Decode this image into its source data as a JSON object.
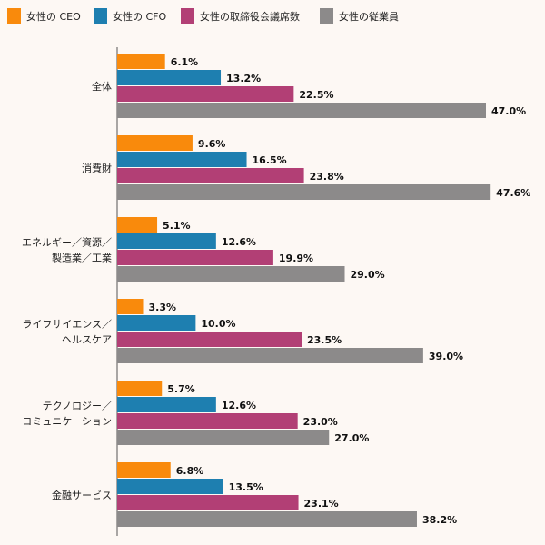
{
  "chart_data": {
    "type": "bar",
    "orientation": "horizontal",
    "xlim": [
      0,
      50
    ],
    "grid": false,
    "legend_position": "top-left",
    "categories": [
      [
        "全体"
      ],
      [
        "消費財"
      ],
      [
        "エネルギー／資源／",
        "製造業／工業"
      ],
      [
        "ライフサイエンス／",
        "ヘルスケア"
      ],
      [
        "テクノロジー／",
        "コミュニケーション"
      ],
      [
        "金融サービス"
      ]
    ],
    "series": [
      {
        "name": "女性の CEO",
        "color": "#f98a0c",
        "values": [
          6.1,
          9.6,
          5.1,
          3.3,
          5.7,
          6.8
        ],
        "labels": [
          "6.1%",
          "9.6%",
          "5.1%",
          "3.3%",
          "5.7%",
          "6.8%"
        ]
      },
      {
        "name": "女性の CFO",
        "color": "#1e7fb0",
        "values": [
          13.2,
          16.5,
          12.6,
          10.0,
          12.6,
          13.5
        ],
        "labels": [
          "13.2%",
          "16.5%",
          "12.6%",
          "10.0%",
          "12.6%",
          "13.5%"
        ]
      },
      {
        "name": "女性の取締役会議席数",
        "color": "#b23f75",
        "values": [
          22.5,
          23.8,
          19.9,
          23.5,
          23.0,
          23.1
        ],
        "labels": [
          "22.5%",
          "23.8%",
          "19.9%",
          "23.5%",
          "23.0%",
          "23.1%"
        ]
      },
      {
        "name": "女性の従業員",
        "color": "#8c8a8a",
        "values": [
          47.0,
          47.6,
          29.0,
          39.0,
          27.0,
          38.2
        ],
        "labels": [
          "47.0%",
          "47.6%",
          "29.0%",
          "39.0%",
          "27.0%",
          "38.2%"
        ]
      }
    ]
  }
}
